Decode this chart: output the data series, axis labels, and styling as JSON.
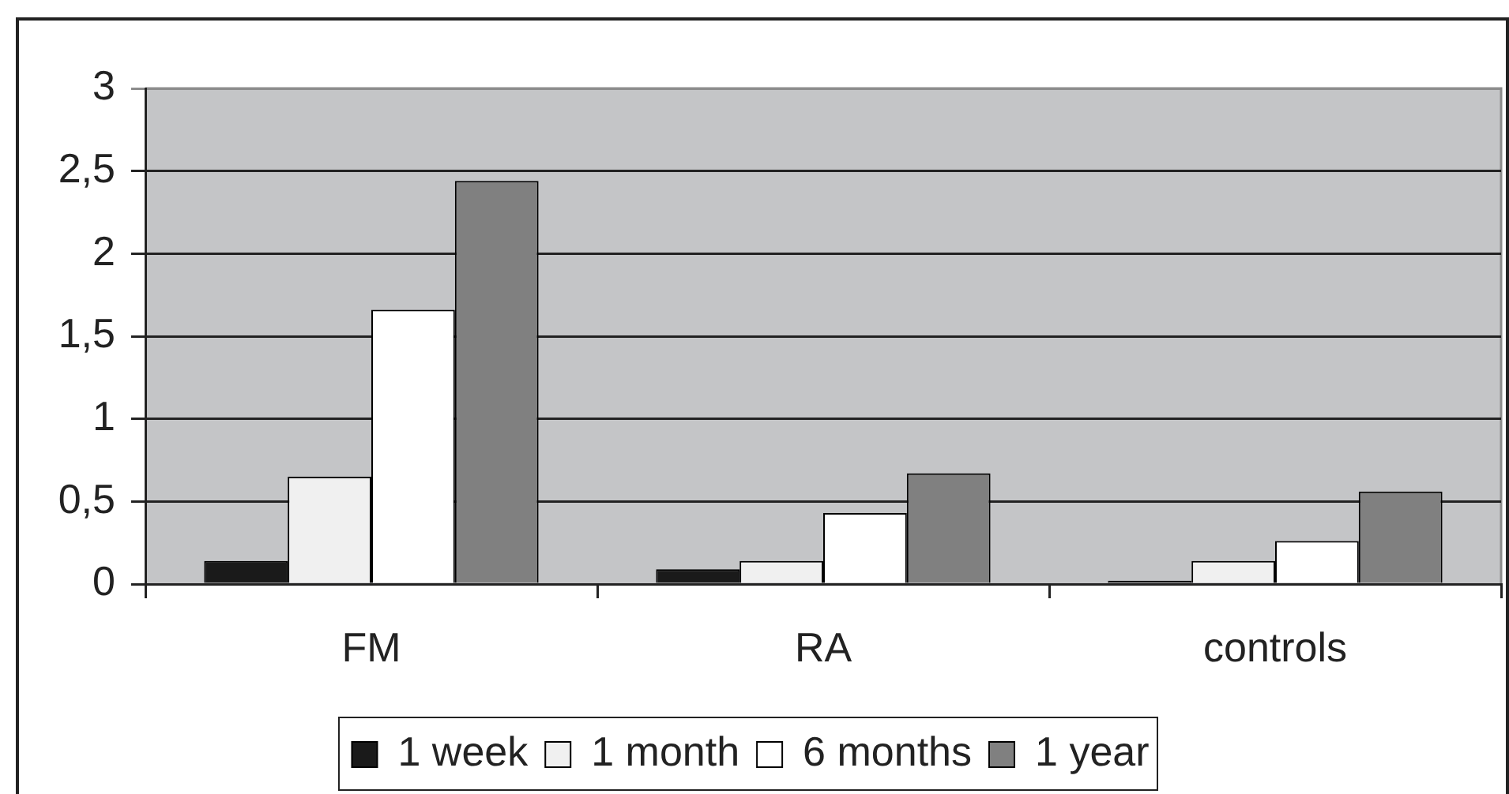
{
  "chart_data": {
    "type": "bar",
    "categories": [
      "FM",
      "RA",
      "controls"
    ],
    "series": [
      {
        "name": "1 week",
        "color": "#1a1a1a",
        "values": [
          0.14,
          0.09,
          0.02
        ]
      },
      {
        "name": "1 month",
        "color": "#f0f0f0",
        "values": [
          0.65,
          0.14,
          0.14
        ]
      },
      {
        "name": "6 months",
        "color": "#ffffff",
        "values": [
          1.66,
          0.43,
          0.26
        ]
      },
      {
        "name": "1 year",
        "color": "#808080",
        "values": [
          2.44,
          0.67,
          0.56
        ]
      }
    ],
    "ylim": [
      0,
      3
    ],
    "yticks": [
      0,
      {
        "value": 0.5,
        "label": "0,5"
      },
      1,
      {
        "value": 1.5,
        "label": "1,5"
      },
      2,
      {
        "value": 2.5,
        "label": "2,5"
      },
      3
    ],
    "grid": "y",
    "legend": "bottom"
  }
}
